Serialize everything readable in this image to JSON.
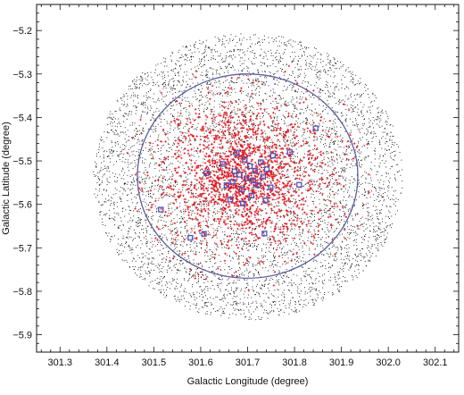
{
  "chart_data": {
    "type": "scatter",
    "title": "",
    "xlabel": "Galactic Longitude (degree)",
    "ylabel": "Galactic Latitude (degree)",
    "xlim": [
      301.25,
      302.15
    ],
    "ylim": [
      -5.94,
      -5.14
    ],
    "x_ticks": [
      301.3,
      301.4,
      301.5,
      301.6,
      301.7,
      301.8,
      301.9,
      302.0,
      302.1
    ],
    "x_tick_labels": [
      "301.3",
      "301.4",
      "301.5",
      "301.6",
      "301.7",
      "301.8",
      "301.9",
      "302.0",
      "302.1"
    ],
    "y_ticks": [
      -5.2,
      -5.3,
      -5.4,
      -5.5,
      -5.6,
      -5.7,
      -5.8,
      -5.9
    ],
    "y_tick_labels": [
      "−5.2",
      "−5.3",
      "−5.4",
      "−5.5",
      "−5.6",
      "−5.7",
      "−5.8",
      "−5.9"
    ],
    "grid": false,
    "legend": "none",
    "field": {
      "center": [
        301.7,
        -5.535
      ],
      "outer_radius_deg": 0.33,
      "color": "#000000",
      "marker": "dot",
      "approx_count": 6000
    },
    "cluster_members": {
      "center": [
        301.695,
        -5.535
      ],
      "core_sigma_deg": 0.07,
      "color": "#e8141e",
      "marker": "plus",
      "approx_count": 1700
    },
    "cluster_circle": {
      "center": [
        301.7,
        -5.535
      ],
      "radius_deg": 0.235,
      "color": "#5a5f9e"
    },
    "highlighted_stars": {
      "color": "#4a52c0",
      "marker": "square",
      "points": [
        [
          301.515,
          -5.612
        ],
        [
          301.578,
          -5.677
        ],
        [
          301.607,
          -5.668
        ],
        [
          301.736,
          -5.667
        ],
        [
          301.81,
          -5.555
        ],
        [
          301.79,
          -5.48
        ],
        [
          301.845,
          -5.425
        ],
        [
          301.612,
          -5.528
        ],
        [
          301.647,
          -5.507
        ],
        [
          301.655,
          -5.556
        ],
        [
          301.668,
          -5.548
        ],
        [
          301.672,
          -5.524
        ],
        [
          301.682,
          -5.532
        ],
        [
          301.688,
          -5.566
        ],
        [
          301.694,
          -5.497
        ],
        [
          301.698,
          -5.54
        ],
        [
          301.705,
          -5.512
        ],
        [
          301.708,
          -5.58
        ],
        [
          301.712,
          -5.545
        ],
        [
          301.716,
          -5.523
        ],
        [
          301.722,
          -5.556
        ],
        [
          301.728,
          -5.503
        ],
        [
          301.733,
          -5.536
        ],
        [
          301.741,
          -5.519
        ],
        [
          301.749,
          -5.561
        ],
        [
          301.754,
          -5.488
        ],
        [
          301.663,
          -5.589
        ],
        [
          301.677,
          -5.482
        ],
        [
          301.738,
          -5.591
        ],
        [
          301.69,
          -5.598
        ]
      ]
    }
  }
}
